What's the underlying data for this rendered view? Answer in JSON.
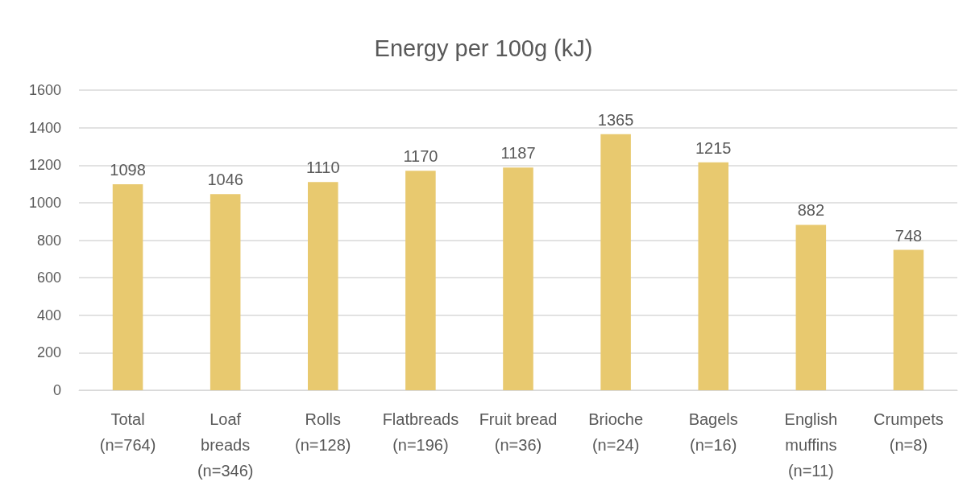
{
  "chart_data": {
    "type": "bar",
    "title": "Energy per 100g (kJ)",
    "categories": [
      "Total\n(n=764)",
      "Loaf\nbreads\n(n=346)",
      "Rolls\n(n=128)",
      "Flatbreads\n(n=196)",
      "Fruit bread\n(n=36)",
      "Brioche\n(n=24)",
      "Bagels\n(n=16)",
      "English\nmuffins\n(n=11)",
      "Crumpets\n(n=8)"
    ],
    "values": [
      1098,
      1046,
      1110,
      1170,
      1187,
      1365,
      1215,
      882,
      748
    ],
    "color": "#e8c96f",
    "ylim": [
      0,
      1600
    ],
    "yticks": [
      0,
      200,
      400,
      600,
      800,
      1000,
      1200,
      1400,
      1600
    ],
    "grid": "y",
    "data_labels": true
  }
}
